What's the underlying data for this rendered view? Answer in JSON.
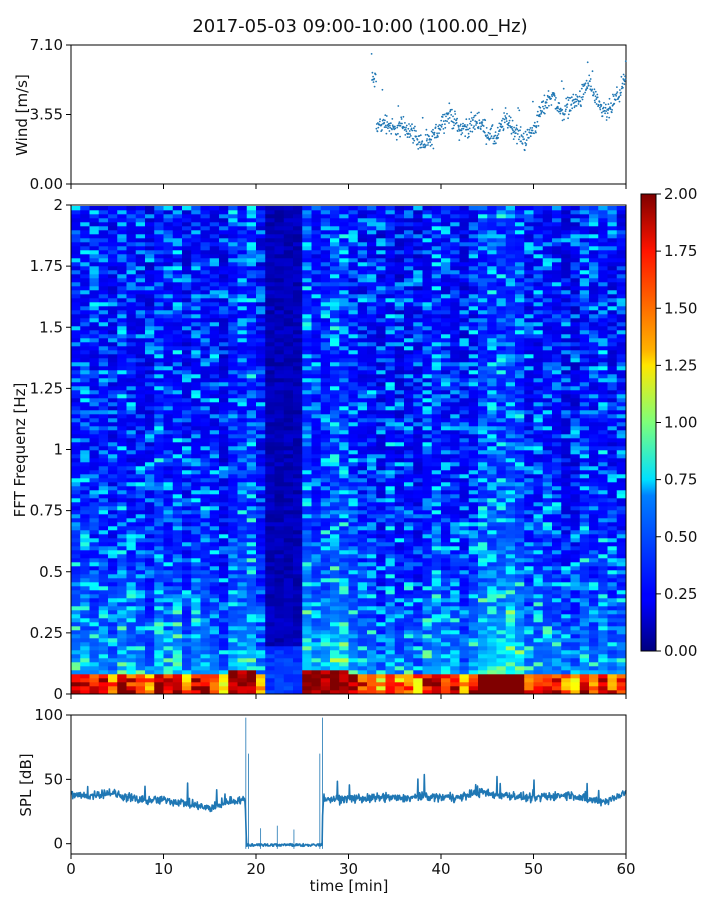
{
  "chart_data": [
    {
      "panel": "wind",
      "type": "scatter",
      "title": "2017-05-03 09:00-10:00 (100.00_Hz)",
      "ylabel": "Wind [m/s]",
      "xlabel": "",
      "xlim": [
        0,
        60
      ],
      "ylim": [
        0,
        7.1
      ],
      "yticks": [
        "7.10",
        "3.55",
        "0.00"
      ],
      "ytick_values": [
        7.1,
        3.55,
        0.0
      ],
      "data_start_min": 32.5,
      "series": [
        {
          "name": "wind",
          "color": "#1f77b4",
          "x": [
            33,
            34,
            35,
            36,
            37,
            38,
            39,
            40,
            41,
            42,
            43,
            44,
            45,
            46,
            47,
            48,
            49,
            50,
            51,
            52,
            53,
            54,
            55,
            56,
            57,
            58,
            59,
            60
          ],
          "y": [
            2.9,
            3.2,
            2.7,
            3.0,
            2.6,
            2.0,
            2.2,
            3.1,
            3.6,
            2.8,
            2.9,
            3.3,
            2.6,
            2.3,
            3.4,
            2.7,
            2.2,
            2.8,
            3.9,
            4.6,
            3.6,
            4.1,
            4.3,
            5.2,
            3.9,
            3.6,
            4.4,
            5.3
          ]
        }
      ]
    },
    {
      "panel": "spectrogram",
      "type": "heatmap",
      "ylabel": "FFT Frequenz [Hz]",
      "xlim": [
        0,
        60
      ],
      "ylim": [
        0,
        2
      ],
      "yticks": [
        "0",
        "0.25",
        "0.5",
        "0.75",
        "1",
        "1.25",
        "1.5",
        "1.75",
        "2"
      ],
      "ytick_values": [
        0,
        0.25,
        0.5,
        0.75,
        1,
        1.25,
        1.5,
        1.75,
        2
      ],
      "colormap": "jet",
      "colorbar": {
        "vmin": 0,
        "vmax": 2,
        "ticks": [
          "2.00",
          "1.75",
          "1.50",
          "1.25",
          "1.00",
          "0.75",
          "0.50",
          "0.25",
          "0.00"
        ],
        "tick_values": [
          2.0,
          1.75,
          1.5,
          1.25,
          1.0,
          0.75,
          0.5,
          0.25,
          0.0
        ]
      },
      "gap_minutes": [
        21,
        25
      ],
      "column_width_min": 1
    },
    {
      "panel": "spl",
      "type": "line",
      "ylabel": "SPL [dB]",
      "xlabel": "time [min]",
      "xlim": [
        0,
        60
      ],
      "ylim": [
        -8,
        100
      ],
      "yticks": [
        "100",
        "50",
        "0"
      ],
      "ytick_values": [
        100,
        50,
        0
      ],
      "xticks": [
        "0",
        "10",
        "20",
        "30",
        "40",
        "50",
        "60"
      ],
      "xtick_values": [
        0,
        10,
        20,
        30,
        40,
        50,
        60
      ],
      "series": [
        {
          "name": "SPL",
          "color": "#1f77b4",
          "x": [
            0,
            2,
            4,
            6,
            8,
            10,
            12,
            14,
            15,
            16,
            17,
            18,
            18.8,
            19,
            22,
            27,
            27.3,
            28,
            30,
            32,
            34,
            36,
            38,
            40,
            42,
            44,
            46,
            48,
            50,
            52,
            54,
            56,
            58,
            60
          ],
          "y": [
            38,
            37,
            40,
            36,
            33,
            34,
            32,
            29,
            27,
            30,
            33,
            34,
            34,
            -2,
            -3,
            -2,
            35,
            34,
            35,
            35,
            36,
            35,
            37,
            36,
            36,
            40,
            38,
            37,
            35,
            37,
            38,
            34,
            33,
            40
          ]
        }
      ]
    }
  ]
}
